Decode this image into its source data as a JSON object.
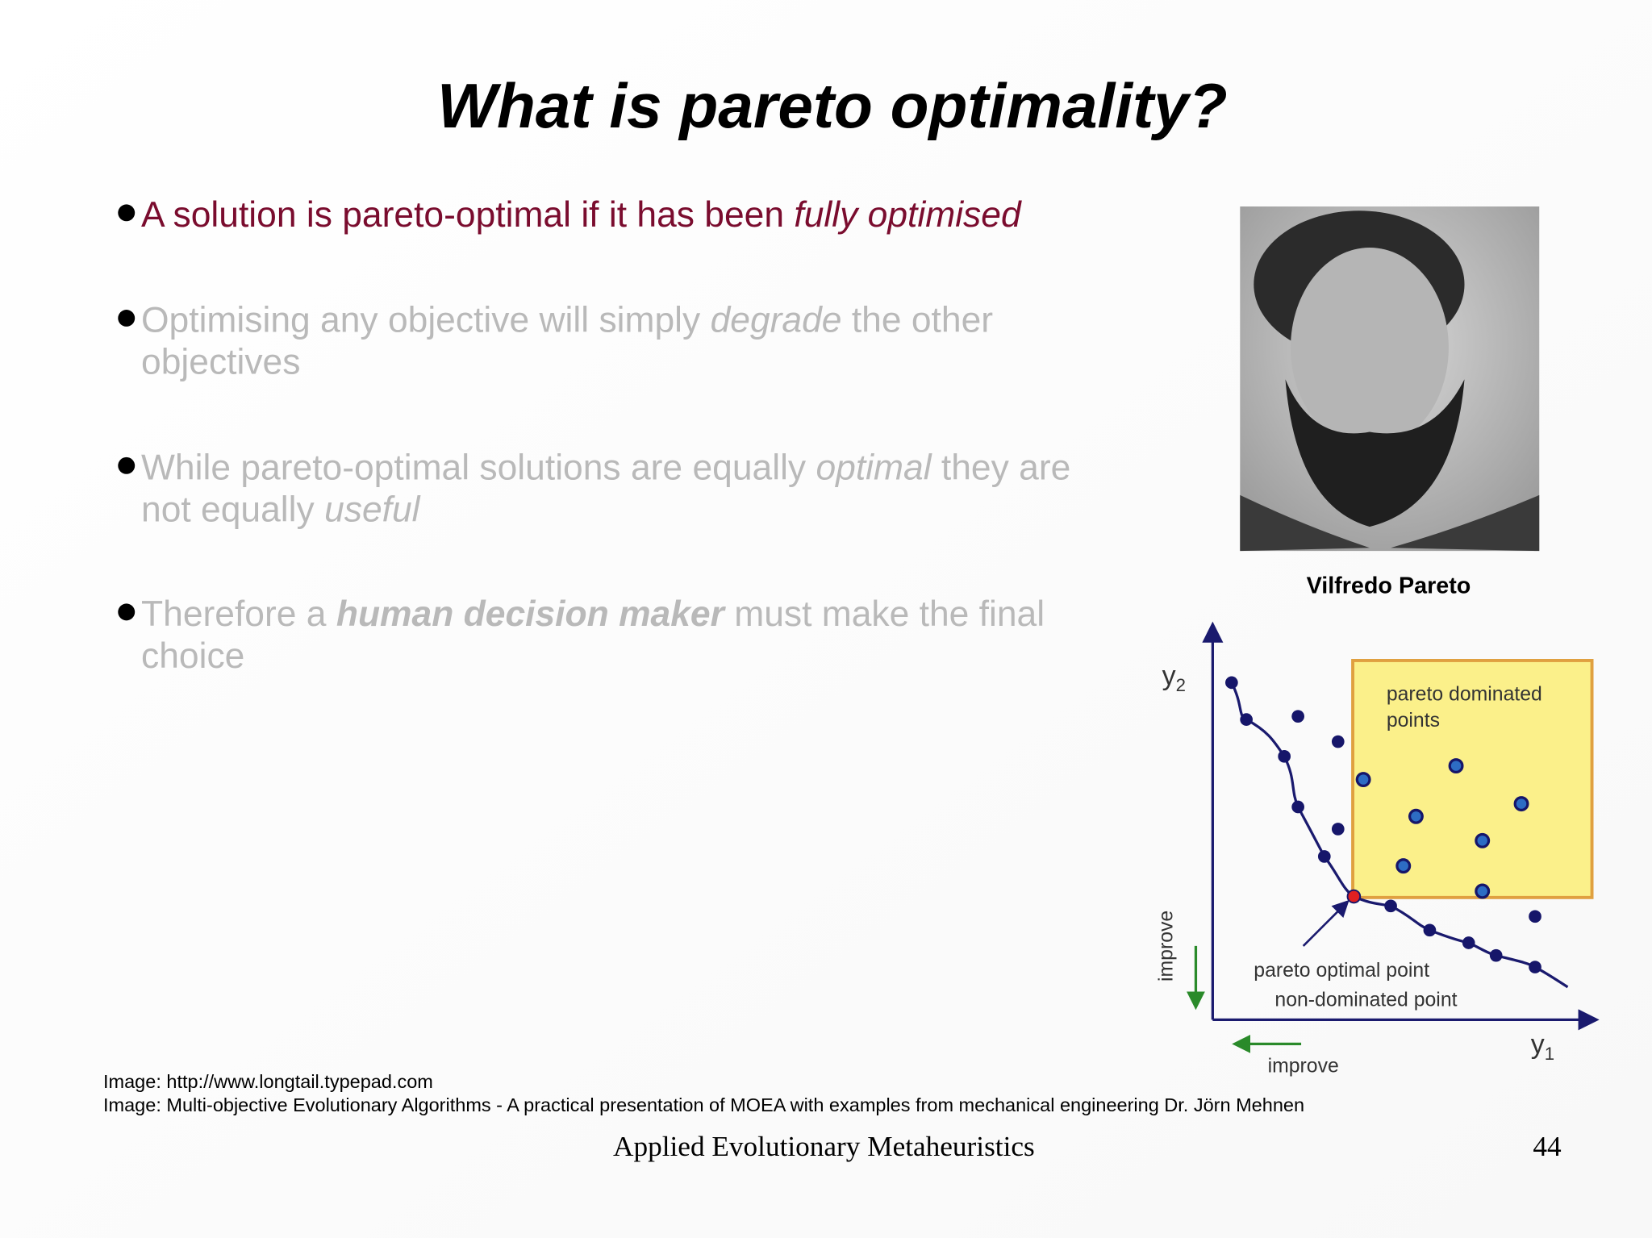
{
  "title": "What is pareto optimality?",
  "bullets": [
    {
      "color": "#7a0c2e",
      "lines": [
        [
          {
            "text": "A solution is pareto-optimal if it has been "
          },
          {
            "text": "fully optimised",
            "style": "italic"
          }
        ]
      ]
    },
    {
      "color": "#b9b9b9",
      "lines": [
        [
          {
            "text": "Optimising any objective will simply "
          },
          {
            "text": "degrade",
            "style": "italic"
          },
          {
            "text": " the other"
          }
        ],
        [
          {
            "text": "objectives"
          }
        ]
      ]
    },
    {
      "color": "#b9b9b9",
      "lines": [
        [
          {
            "text": "While pareto-optimal solutions are equally "
          },
          {
            "text": "optimal",
            "style": "italic"
          },
          {
            "text": " they are"
          }
        ],
        [
          {
            "text": "not equally "
          },
          {
            "text": "useful",
            "style": "italic"
          }
        ]
      ]
    },
    {
      "color": "#b9b9b9",
      "lines": [
        [
          {
            "text": "Therefore a "
          },
          {
            "text": "human decision maker",
            "style": "bold-italic"
          },
          {
            "text": " must make the final"
          }
        ],
        [
          {
            "text": "choice"
          }
        ]
      ]
    }
  ],
  "portrait_caption": "Vilfredo Pareto",
  "diagram": {
    "y_axis": {
      "base": "y",
      "sub": "2"
    },
    "x_axis": {
      "base": "y",
      "sub": "1"
    },
    "dominated_label": [
      "pareto dominated",
      "points"
    ],
    "optimal_label": [
      "pareto optimal point",
      "non-dominated point"
    ],
    "improve_vertical": "improve",
    "improve_horizontal": "improve"
  },
  "credits": [
    "Image: http://www.longtail.typepad.com",
    "Image: Multi-objective Evolutionary Algorithms - A practical presentation of MOEA with examples from mechanical engineering Dr. Jörn Mehnen"
  ],
  "footer": {
    "course": "Applied Evolutionary Metaheuristics",
    "page": "44"
  }
}
